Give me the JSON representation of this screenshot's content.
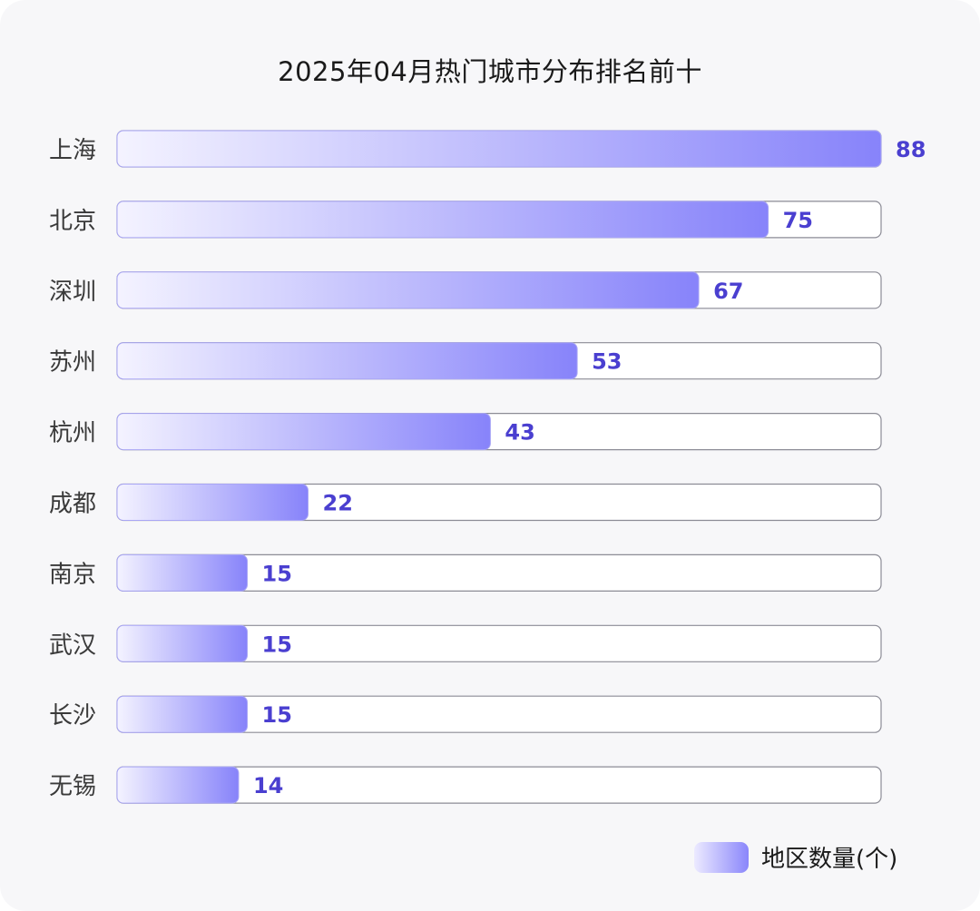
{
  "chart_data": {
    "type": "bar",
    "orientation": "horizontal",
    "title": "2025年04月热门城市分布排名前十",
    "categories": [
      "上海",
      "北京",
      "深圳",
      "苏州",
      "杭州",
      "成都",
      "南京",
      "武汉",
      "长沙",
      "无锡"
    ],
    "series": [
      {
        "name": "地区数量(个)",
        "values": [
          88,
          75,
          67,
          53,
          43,
          22,
          15,
          15,
          15,
          14
        ]
      }
    ],
    "xlim": [
      0,
      88
    ],
    "grid": false,
    "legend_position": "bottom-right",
    "colors": {
      "bar_start": "#f4f3ff",
      "bar_end": "#8783fa",
      "value_label": "#4a3fd0",
      "track_border": "#8c8c96",
      "track_fill": "#ffffff"
    }
  }
}
